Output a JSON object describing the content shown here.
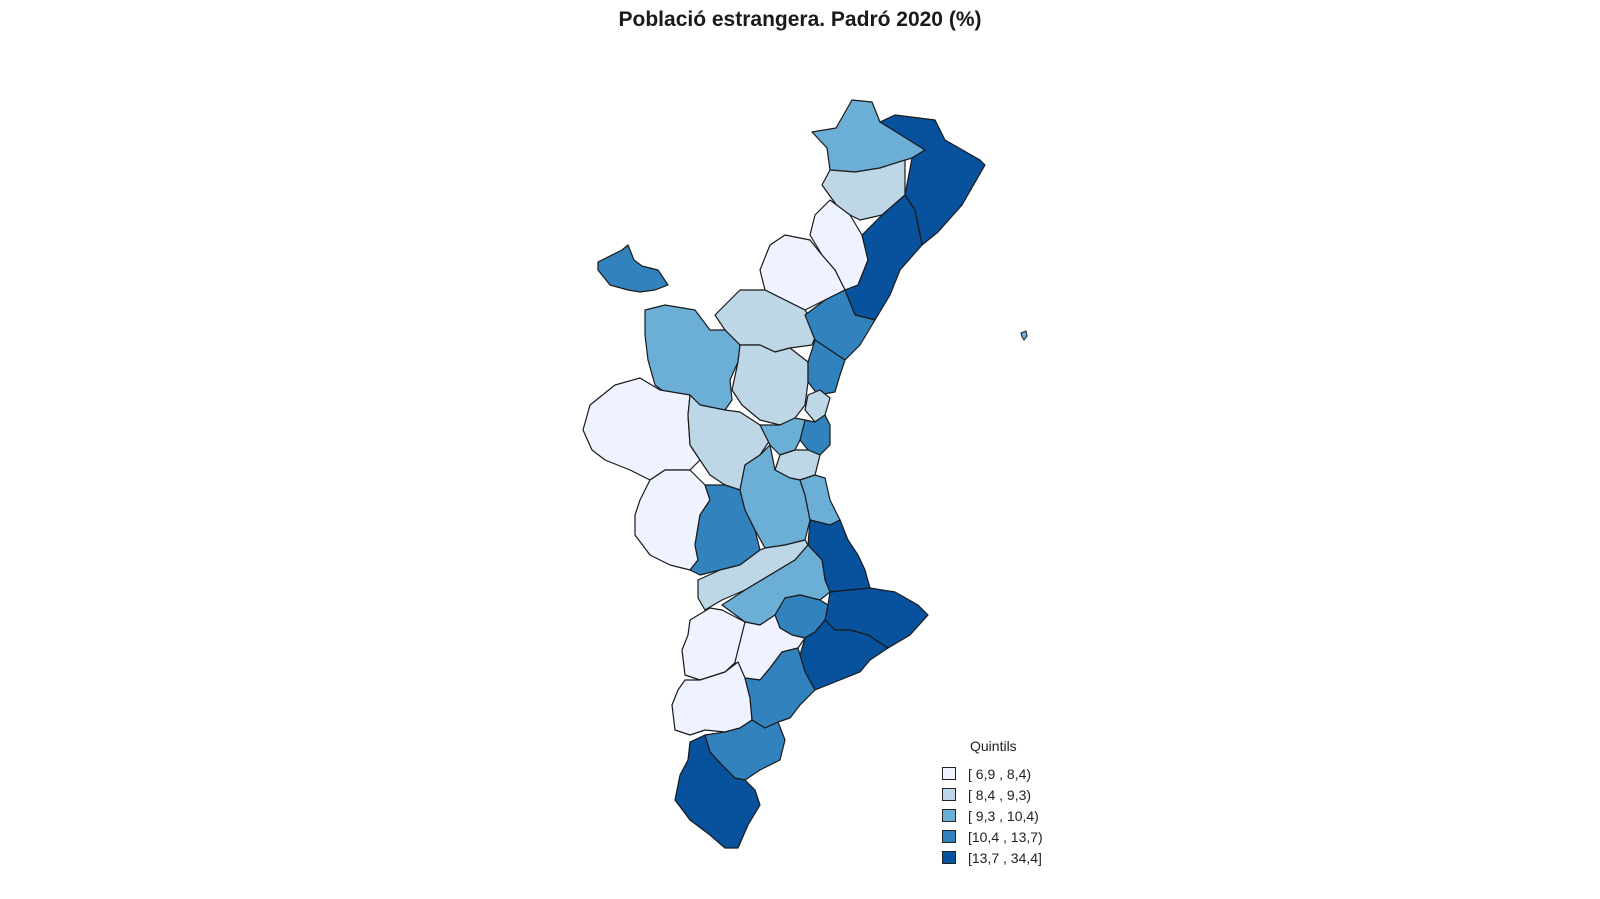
{
  "title": "Població estrangera. Padró 2020 (%)",
  "legend": {
    "title": "Quintils",
    "items": [
      {
        "label": "[ 6,9 ,  8,4)",
        "color": "#eff3ff"
      },
      {
        "label": "[ 8,4 ,  9,3)",
        "color": "#bdd7e7"
      },
      {
        "label": "[ 9,3 , 10,4)",
        "color": "#6baed6"
      },
      {
        "label": "[10,4 , 13,7)",
        "color": "#3182bd"
      },
      {
        "label": "[13,7 , 34,4]",
        "color": "#08519c"
      }
    ]
  },
  "regions": [
    {
      "id": "els-ports",
      "quintile": 2
    },
    {
      "id": "baix-maestrat",
      "quintile": 4
    },
    {
      "id": "alt-maestrat",
      "quintile": 1
    },
    {
      "id": "alcalaten",
      "quintile": 0
    },
    {
      "id": "alt-millars",
      "quintile": 0
    },
    {
      "id": "plana-alta",
      "quintile": 4
    },
    {
      "id": "alt-palancia",
      "quintile": 1
    },
    {
      "id": "plana-baixa",
      "quintile": 3
    },
    {
      "id": "rincon-ademuz",
      "quintile": 3
    },
    {
      "id": "els-serrans",
      "quintile": 2
    },
    {
      "id": "camp-turia",
      "quintile": 1
    },
    {
      "id": "camp-morvedre",
      "quintile": 3
    },
    {
      "id": "horta-nord",
      "quintile": 1
    },
    {
      "id": "valencia",
      "quintile": 3
    },
    {
      "id": "plana-utiel",
      "quintile": 0
    },
    {
      "id": "hoya-bunyol",
      "quintile": 1
    },
    {
      "id": "horta-oest",
      "quintile": 2
    },
    {
      "id": "horta-sud",
      "quintile": 1
    },
    {
      "id": "vall-cofrents",
      "quintile": 0
    },
    {
      "id": "canal-navarres",
      "quintile": 3
    },
    {
      "id": "ribera-alta",
      "quintile": 2
    },
    {
      "id": "ribera-baixa",
      "quintile": 2
    },
    {
      "id": "safor",
      "quintile": 4
    },
    {
      "id": "costera",
      "quintile": 1
    },
    {
      "id": "vall-albaida",
      "quintile": 2
    },
    {
      "id": "marina-alta",
      "quintile": 4
    },
    {
      "id": "comtat",
      "quintile": 3
    },
    {
      "id": "alt-vinalopo",
      "quintile": 0
    },
    {
      "id": "alcoia",
      "quintile": 0
    },
    {
      "id": "marina-baixa",
      "quintile": 4
    },
    {
      "id": "vinalopo-mitja",
      "quintile": 0
    },
    {
      "id": "alacanti",
      "quintile": 3
    },
    {
      "id": "baix-vinalopo",
      "quintile": 3
    },
    {
      "id": "baix-segura",
      "quintile": 4
    }
  ]
}
